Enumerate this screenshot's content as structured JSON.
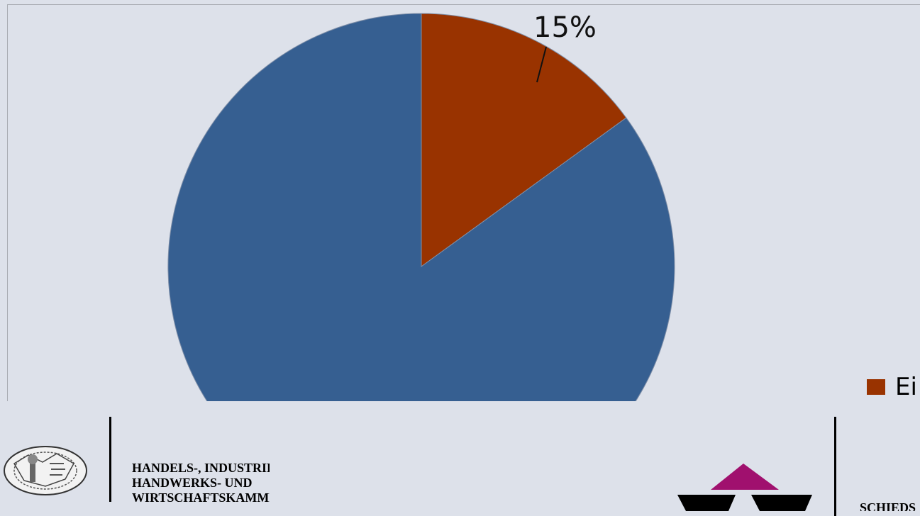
{
  "chart_data": {
    "type": "pie",
    "slices": [
      {
        "value": 15,
        "label": "15%",
        "color": "#993300"
      },
      {
        "value": 85,
        "label": "",
        "color": "#365f91"
      }
    ],
    "start_angle_deg": 0,
    "direction": "clockwise",
    "legend": {
      "placement": "right",
      "entries": [
        {
          "text": "Ei",
          "color": "#993300"
        }
      ]
    }
  },
  "footer": {
    "org_lines": [
      "HANDELS-, INDUSTRIE-",
      "HANDWERKS- UND",
      "WIRTSCHAFTSKAMMER"
    ],
    "right_text": "SCHIEDS",
    "logo_colors": {
      "triangle": "#a0106e",
      "bowls": "#000000"
    }
  }
}
